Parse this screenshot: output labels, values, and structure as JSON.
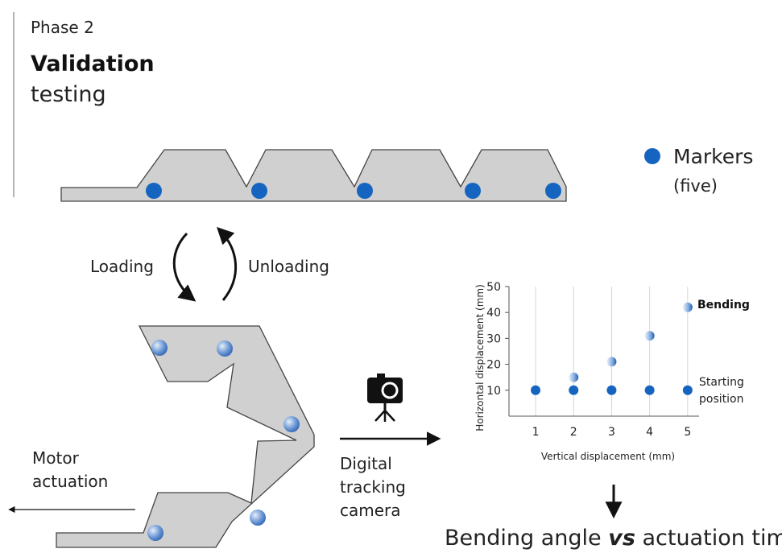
{
  "header": {
    "phase": "Phase 2",
    "title_bold": "Validation",
    "title_rest": "testing"
  },
  "legend": {
    "label": "Markers",
    "sublabel": "(five)",
    "marker_color": "#1565c0"
  },
  "process": {
    "loading": "Loading",
    "unloading": "Unloading",
    "motor_line1": "Motor",
    "motor_line2": "actuation",
    "camera_line1": "Digital",
    "camera_line2": "tracking",
    "camera_line3": "camera",
    "camera_icon": "camera-on-tripod-icon"
  },
  "conclusion": {
    "part1": "Bending angle ",
    "emphasis": "vs",
    "part2": " actuation time"
  },
  "colors": {
    "body_fill": "#d0d0d0",
    "body_stroke": "#444444",
    "marker": "#1565c0",
    "marker_light": "#8fb0dd"
  },
  "chart_data": {
    "type": "scatter",
    "xlabel": "Vertical displacement (mm)",
    "ylabel": "Horizontal displacement (mm)",
    "x_ticks": [
      "1",
      "2",
      "3",
      "4",
      "5"
    ],
    "y_ticks": [
      "10",
      "20",
      "30",
      "40",
      "50"
    ],
    "xlim": [
      0.3,
      5.3
    ],
    "ylim": [
      0,
      50
    ],
    "grid": "vertical",
    "series": [
      {
        "name": "Bending",
        "style": "gradient",
        "x": [
          2,
          3,
          4,
          5
        ],
        "y": [
          15,
          21,
          31,
          42
        ]
      },
      {
        "name": "Starting position",
        "style": "solid",
        "x": [
          1,
          2,
          3,
          4,
          5
        ],
        "y": [
          10,
          10,
          10,
          10,
          10
        ]
      }
    ]
  }
}
